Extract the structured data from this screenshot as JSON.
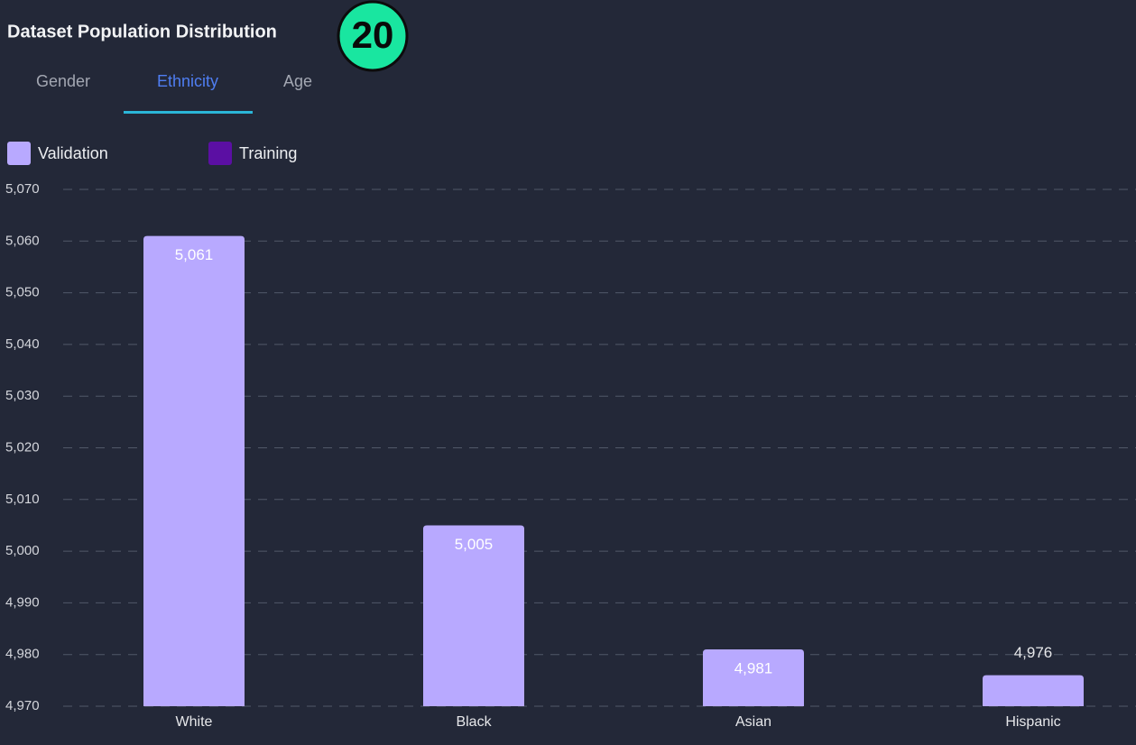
{
  "title": "Dataset Population Distribution",
  "badge": "20",
  "tabs": [
    "Gender",
    "Ethnicity",
    "Age"
  ],
  "active_tab": 1,
  "chart_data": {
    "type": "bar",
    "categories": [
      "White",
      "Black",
      "Asian",
      "Hispanic"
    ],
    "series": [
      {
        "name": "Validation",
        "color": "#b8a9ff",
        "values": [
          5061,
          5005,
          4981,
          4976
        ],
        "value_labels": [
          "5,061",
          "5,005",
          "4,981",
          "4,976"
        ]
      },
      {
        "name": "Training",
        "color": "#5b0fa3",
        "values": [
          null,
          null,
          null,
          null
        ]
      }
    ],
    "ylim": [
      4970,
      5070
    ],
    "yticks": [
      {
        "value": 4970,
        "label": "4,970"
      },
      {
        "value": 4980,
        "label": "4,980"
      },
      {
        "value": 4990,
        "label": "4,990"
      },
      {
        "value": 5000,
        "label": "5,000"
      },
      {
        "value": 5010,
        "label": "5,010"
      },
      {
        "value": 5020,
        "label": "5,020"
      },
      {
        "value": 5030,
        "label": "5,030"
      },
      {
        "value": 5040,
        "label": "5,040"
      },
      {
        "value": 5050,
        "label": "5,050"
      },
      {
        "value": 5060,
        "label": "5,060"
      },
      {
        "value": 5070,
        "label": "5,070"
      }
    ],
    "grid": true
  }
}
